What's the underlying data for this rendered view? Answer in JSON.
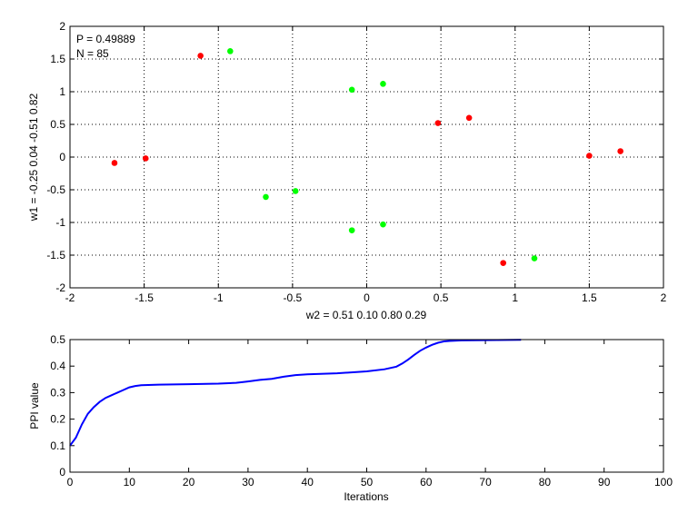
{
  "chart_data": [
    {
      "type": "scatter",
      "annotations": [
        "P = 0.49889",
        "N = 85"
      ],
      "xlabel": "w2 = 0.51  0.10  0.80  0.29",
      "ylabel": "w1 = -0.25  0.04  -0.51  0.82",
      "xlim": [
        -2,
        2
      ],
      "ylim": [
        -2,
        2
      ],
      "xticks": [
        -2,
        -1.5,
        -1,
        -0.5,
        0,
        0.5,
        1,
        1.5,
        2
      ],
      "yticks": [
        -2,
        -1.5,
        -1,
        -0.5,
        0,
        0.5,
        1,
        1.5,
        2
      ],
      "grid": true,
      "series": [
        {
          "color": "#ff0000",
          "points": [
            [
              -1.12,
              1.55
            ],
            [
              -1.7,
              -0.09
            ],
            [
              -1.49,
              -0.02
            ],
            [
              0.48,
              0.52
            ],
            [
              0.69,
              0.6
            ],
            [
              0.92,
              -1.62
            ],
            [
              1.5,
              0.02
            ],
            [
              1.71,
              0.09
            ]
          ]
        },
        {
          "color": "#00ff00",
          "points": [
            [
              -0.92,
              1.62
            ],
            [
              -0.1,
              1.03
            ],
            [
              0.11,
              1.12
            ],
            [
              -0.68,
              -0.61
            ],
            [
              -0.48,
              -0.52
            ],
            [
              -0.1,
              -1.12
            ],
            [
              0.11,
              -1.03
            ],
            [
              1.13,
              -1.55
            ]
          ]
        }
      ]
    },
    {
      "type": "line",
      "xlabel": "Iterations",
      "ylabel": "PPI value",
      "xlim": [
        0,
        100
      ],
      "ylim": [
        0,
        0.5
      ],
      "xticks": [
        0,
        10,
        20,
        30,
        40,
        50,
        60,
        70,
        80,
        90,
        100
      ],
      "yticks": [
        0,
        0.1,
        0.2,
        0.3,
        0.4,
        0.5
      ],
      "grid": false,
      "series": [
        {
          "color": "#0000ff",
          "x": [
            0,
            1,
            2,
            3,
            4,
            5,
            6,
            7,
            8,
            9,
            10,
            11,
            12,
            15,
            20,
            25,
            28,
            30,
            32,
            34,
            36,
            38,
            40,
            45,
            50,
            53,
            55,
            56,
            57,
            58,
            59,
            60,
            61,
            62,
            63,
            64,
            66,
            70,
            76
          ],
          "y": [
            0.1,
            0.13,
            0.18,
            0.22,
            0.245,
            0.265,
            0.28,
            0.29,
            0.3,
            0.31,
            0.32,
            0.325,
            0.328,
            0.33,
            0.332,
            0.334,
            0.337,
            0.342,
            0.348,
            0.352,
            0.36,
            0.366,
            0.369,
            0.373,
            0.38,
            0.388,
            0.398,
            0.41,
            0.425,
            0.442,
            0.458,
            0.47,
            0.48,
            0.488,
            0.493,
            0.495,
            0.497,
            0.498,
            0.499
          ]
        }
      ]
    }
  ]
}
